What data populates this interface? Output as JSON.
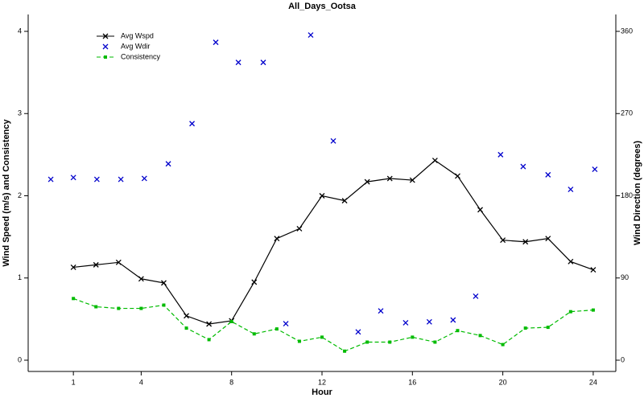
{
  "chart_data": {
    "type": "line",
    "title": "All_Days_Ootsa",
    "xlabel": "Hour",
    "ylabel": "Wind Speed (m/s) and Consistency",
    "y2label": "Wind Direction (degrees)",
    "xlim": [
      -1,
      25
    ],
    "xticks": [
      1,
      4,
      8,
      12,
      16,
      20,
      24
    ],
    "ylim": [
      0,
      4
    ],
    "yticks": [
      0,
      1,
      2,
      3,
      4
    ],
    "y2lim": [
      0,
      360
    ],
    "y2ticks": [
      0,
      90,
      180,
      270,
      360
    ],
    "legend": "upper left",
    "series": [
      {
        "name": "Avg Wspd",
        "color": "#000000",
        "style": "solid",
        "marker": "x",
        "x": [
          1,
          2,
          3,
          4,
          5,
          6,
          7,
          8,
          9,
          10,
          11,
          12,
          13,
          14,
          15,
          16,
          17,
          18,
          19,
          20,
          21,
          22,
          23,
          24
        ],
        "values": [
          1.13,
          1.16,
          1.19,
          0.99,
          0.94,
          0.54,
          0.44,
          0.48,
          0.95,
          1.48,
          1.6,
          2.0,
          1.94,
          2.17,
          2.21,
          2.19,
          2.43,
          2.24,
          1.83,
          1.46,
          1.44,
          1.48,
          1.2,
          1.1
        ]
      },
      {
        "name": "Avg Wdir",
        "color": "#0000cc",
        "style": "none",
        "marker": "x",
        "axis": "y2",
        "x": [
          0.0,
          1.0,
          2.04,
          3.1,
          4.14,
          5.2,
          6.25,
          7.3,
          8.3,
          9.4,
          10.4,
          11.5,
          12.5,
          13.6,
          14.6,
          15.7,
          16.75,
          17.8,
          18.8,
          19.9,
          20.9,
          22.0,
          23.0,
          24.07
        ],
        "values": [
          198,
          200,
          198,
          198,
          199,
          215,
          259,
          348,
          326,
          326,
          40,
          356,
          240,
          31,
          54,
          41,
          42,
          44,
          70,
          225,
          212,
          203,
          187,
          209
        ]
      },
      {
        "name": "Consistency",
        "color": "#00bb00",
        "style": "dashed",
        "marker": "square",
        "x": [
          1,
          2,
          3,
          4,
          5,
          6,
          7,
          8,
          9,
          10,
          11,
          12,
          13,
          14,
          15,
          16,
          17,
          18,
          19,
          20,
          21,
          22,
          23,
          24
        ],
        "values": [
          0.75,
          0.65,
          0.63,
          0.63,
          0.67,
          0.39,
          0.25,
          0.47,
          0.32,
          0.38,
          0.23,
          0.28,
          0.11,
          0.22,
          0.22,
          0.28,
          0.22,
          0.36,
          0.3,
          0.19,
          0.39,
          0.4,
          0.59,
          0.61
        ]
      }
    ]
  }
}
